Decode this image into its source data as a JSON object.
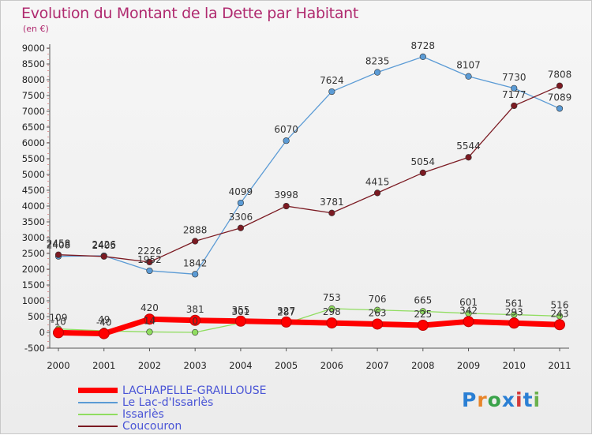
{
  "title": "Evolution du Montant de la Dette par Habitant",
  "unit_label": "(en €)",
  "logo": {
    "text": "Proxiti",
    "colors": [
      "#2a7fd4",
      "#e8852a",
      "#3aa34a",
      "#2a7fd4",
      "#d43a3a",
      "#2a7fd4",
      "#6ab04c"
    ]
  },
  "chart_data": {
    "type": "line",
    "x": [
      "2000",
      "2001",
      "2002",
      "2003",
      "2004",
      "2005",
      "2006",
      "2007",
      "2008",
      "2009",
      "2010",
      "2011"
    ],
    "ylim": [
      -500,
      9000
    ],
    "yticks": [
      "-500",
      "0",
      "500",
      "1000",
      "1500",
      "2000",
      "2500",
      "3000",
      "3500",
      "4000",
      "4500",
      "5000",
      "5500",
      "6000",
      "6500",
      "7000",
      "7500",
      "8000",
      "8500",
      "9000"
    ],
    "grid": false,
    "legend_position": "bottom-left",
    "series": [
      {
        "name": "LACHAPELLE-GRAILLOUSE",
        "color": "#ff0000",
        "values": [
          -10,
          -40,
          420,
          381,
          355,
          327,
          298,
          263,
          225,
          342,
          293,
          243
        ]
      },
      {
        "name": "Le Lac-d'Issarlès",
        "color": "#5b9bd5",
        "values": [
          2408,
          2426,
          1952,
          1842,
          4099,
          6070,
          7624,
          8235,
          8728,
          8107,
          7730,
          7089
        ]
      },
      {
        "name": "Issarlès",
        "color": "#90dd60",
        "values": [
          109,
          49,
          14,
          0,
          301,
          287,
          753,
          706,
          665,
          601,
          561,
          516
        ]
      },
      {
        "name": "Coucouron",
        "color": "#7b1a22",
        "values": [
          2458,
          2405,
          2226,
          2888,
          3306,
          3998,
          3781,
          4415,
          5054,
          5544,
          7177,
          7808
        ]
      }
    ],
    "data_labels": [
      [
        "-10",
        "-40",
        "420",
        "381",
        "355",
        "327",
        "298",
        "263",
        "225",
        "342",
        "293",
        "243"
      ],
      [
        "2408",
        "2426",
        "1952",
        "1842",
        "4099",
        "6070",
        "7624",
        "8235",
        "8728",
        "8107",
        "7730",
        "7089"
      ],
      [
        "109",
        "49",
        "14",
        "0",
        "301",
        "287",
        "753",
        "706",
        "665",
        "601",
        "561",
        "516"
      ],
      [
        "2458",
        "2405",
        "2226",
        "2888",
        "3306",
        "3998",
        "3781",
        "4415",
        "5054",
        "5544",
        "7177",
        "7808"
      ]
    ]
  }
}
